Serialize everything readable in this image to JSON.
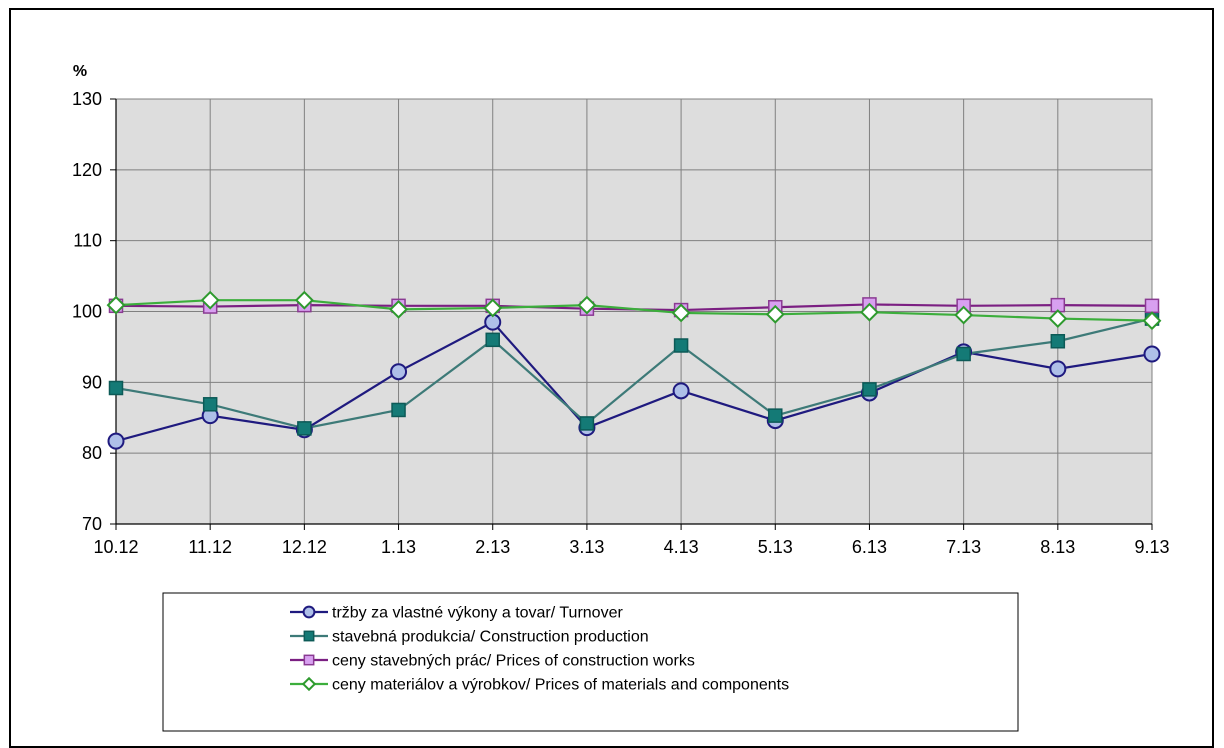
{
  "chart_data": {
    "type": "line",
    "title": "",
    "ylabel": "%",
    "xlabel": "",
    "categories": [
      "10.12",
      "11.12",
      "12.12",
      "1.13",
      "2.13",
      "3.13",
      "4.13",
      "5.13",
      "6.13",
      "7.13",
      "8.13",
      "9.13"
    ],
    "ylim": [
      70,
      130
    ],
    "yticks": [
      70,
      80,
      90,
      100,
      110,
      120,
      130
    ],
    "grid": true,
    "legend_position": "bottom",
    "series": [
      {
        "name": "tržby za vlastné výkony a tovar/ Turnover",
        "marker": "circle",
        "line_color": "#1f1a7f",
        "marker_fill": "#aebfe8",
        "marker_stroke": "#1f1a7f",
        "values": [
          81.7,
          85.3,
          83.3,
          91.5,
          98.5,
          83.6,
          88.8,
          84.6,
          88.5,
          94.3,
          91.9,
          94.0
        ]
      },
      {
        "name": "stavebná produkcia/ Construction production",
        "marker": "square",
        "line_color": "#3d7a78",
        "marker_fill": "#147a76",
        "marker_stroke": "#0c5a57",
        "values": [
          89.2,
          86.9,
          83.5,
          86.1,
          96.0,
          84.2,
          95.2,
          85.3,
          89.0,
          94.0,
          95.8,
          99.0
        ]
      },
      {
        "name": "ceny stavebných prác/ Prices of construction works",
        "marker": "square",
        "line_color": "#7b1f82",
        "marker_fill": "#d8a0f0",
        "marker_stroke": "#8a3a92",
        "values": [
          100.8,
          100.7,
          100.9,
          100.8,
          100.8,
          100.4,
          100.2,
          100.6,
          101.0,
          100.8,
          100.9,
          100.8
        ]
      },
      {
        "name": "ceny materiálov a výrobkov/ Prices of materials and components",
        "marker": "diamond",
        "line_color": "#3cae3c",
        "marker_fill": "#ffffff",
        "marker_stroke": "#2e9a2e",
        "values": [
          100.9,
          101.6,
          101.6,
          100.3,
          100.5,
          100.9,
          99.8,
          99.6,
          99.9,
          99.5,
          99.0,
          98.7
        ]
      }
    ]
  }
}
